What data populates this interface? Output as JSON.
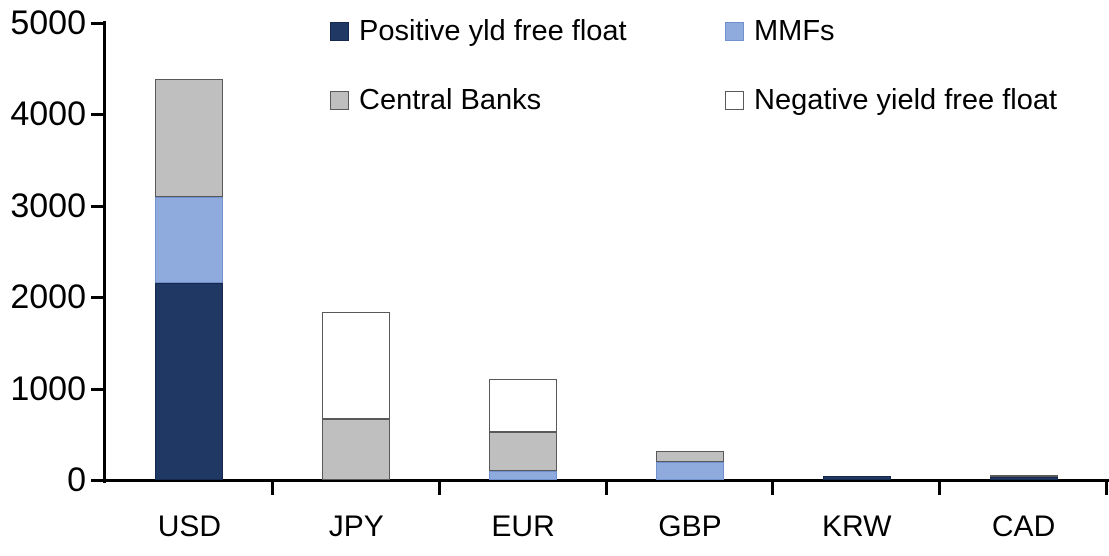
{
  "chart_data": {
    "type": "bar",
    "stacked": true,
    "title": "",
    "xlabel": "",
    "ylabel": "",
    "categories": [
      "USD",
      "JPY",
      "EUR",
      "GBP",
      "KRW",
      "CAD"
    ],
    "series": [
      {
        "name": "Positive yld free float",
        "color": "#1F3864",
        "border_color": "#16294d",
        "values": [
          2150,
          0,
          0,
          0,
          40,
          30
        ]
      },
      {
        "name": "MMFs",
        "color": "#8FAADC",
        "border_color": "#7191CE",
        "values": [
          950,
          0,
          100,
          200,
          0,
          0
        ]
      },
      {
        "name": "Central Banks",
        "color": "#BFBFBF",
        "border_color": "#595959",
        "values": [
          1290,
          670,
          420,
          120,
          0,
          30
        ]
      },
      {
        "name": "Negative yield free float",
        "color": "#FFFFFF",
        "border_color": "#595959",
        "values": [
          0,
          1170,
          580,
          0,
          0,
          0
        ]
      }
    ],
    "totals": [
      4390,
      1840,
      1100,
      320,
      40,
      60
    ],
    "ylim": [
      0,
      5000
    ],
    "yticks": [
      0,
      1000,
      2000,
      3000,
      4000,
      5000
    ],
    "grid": false,
    "legend_position": "top",
    "axis_color": "#000000"
  }
}
